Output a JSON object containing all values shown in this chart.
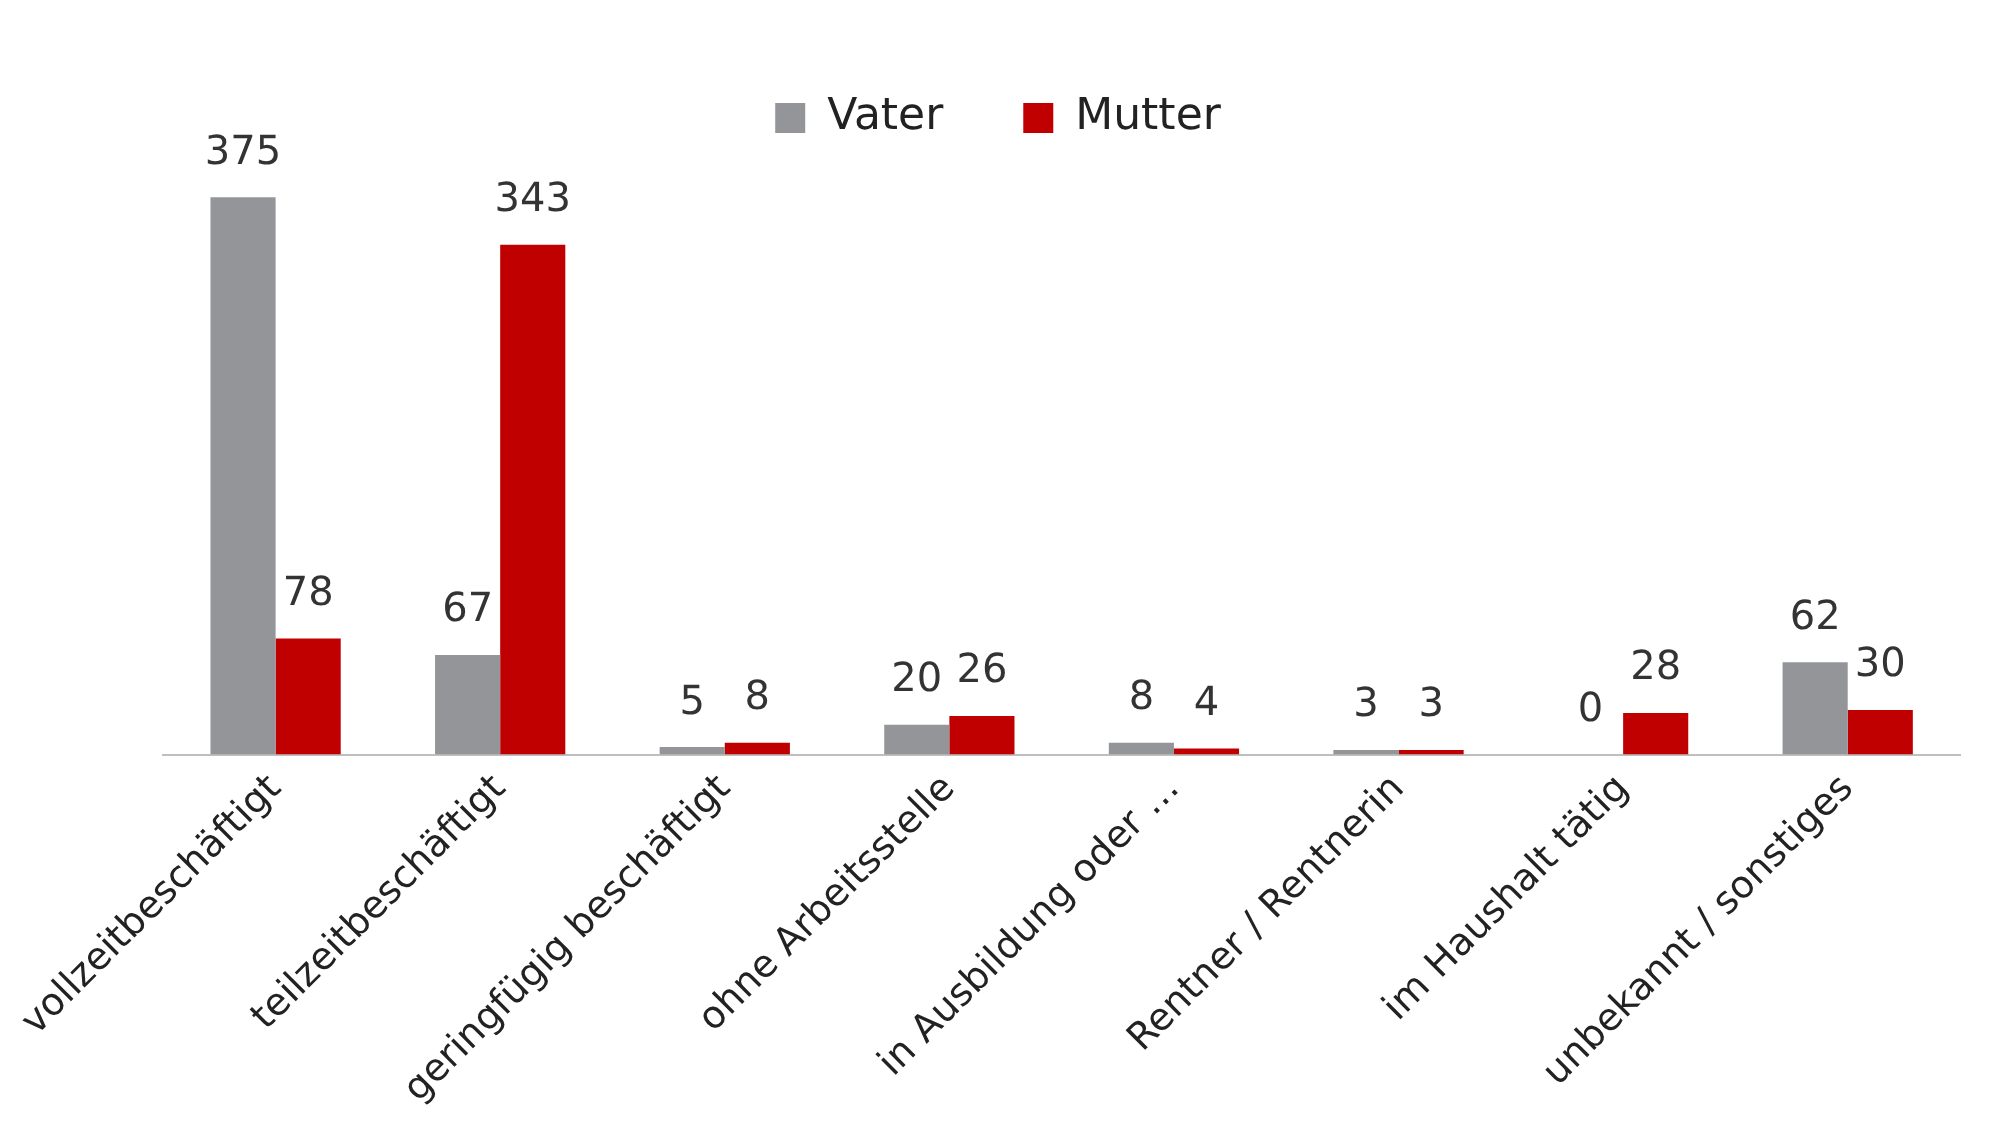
{
  "chart_data": {
    "type": "bar",
    "categories": [
      "vollzeitbeschäftigt",
      "teilzeitbeschäftigt",
      "geringfügig beschäftigt",
      "ohne Arbeitsstelle",
      "in Ausbildung oder …",
      "Rentner / Rentnerin",
      "im Haushalt tätig",
      "unbekannt / sonstiges"
    ],
    "series": [
      {
        "name": "Vater",
        "color": "#939598",
        "values": [
          375,
          67,
          5,
          20,
          8,
          3,
          0,
          62
        ]
      },
      {
        "name": "Mutter",
        "color": "#c00000",
        "values": [
          78,
          343,
          8,
          26,
          4,
          3,
          28,
          30
        ]
      }
    ],
    "data_labels": true,
    "legend": "top",
    "grid": false
  }
}
